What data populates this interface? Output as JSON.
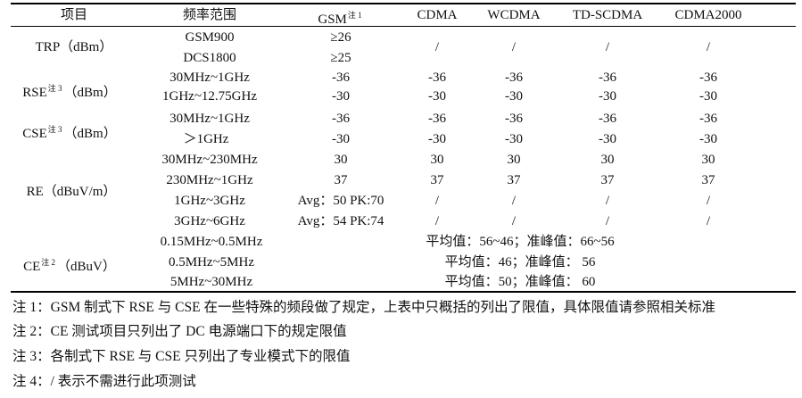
{
  "table": {
    "headers": {
      "item": "项目",
      "freq": "频率范围",
      "gsm": "GSM",
      "gsm_note": "注 1",
      "cdma": "CDMA",
      "wcdma": "WCDMA",
      "tdscdma": "TD-SCDMA",
      "cdma2000": "CDMA2000"
    },
    "groups": [
      {
        "label": "TRP",
        "unit": "（dBm）",
        "note": ""
      },
      {
        "label": "RSE",
        "unit": "（dBm）",
        "note": "注 3"
      },
      {
        "label": "CSE",
        "unit": "（dBm）",
        "note": "注 3"
      },
      {
        "label": "RE",
        "unit": "（dBuV/m）",
        "note": ""
      },
      {
        "label": "CE",
        "unit": "（dBuV）",
        "note": "注 2"
      }
    ],
    "rows": [
      {
        "freq": "GSM900",
        "gsm": "≥26",
        "cdma": "",
        "wcdma": "",
        "tdscdma": "",
        "cdma2000": ""
      },
      {
        "freq": "DCS1800",
        "gsm": "≥25",
        "cdma": "/",
        "wcdma": "/",
        "tdscdma": "/",
        "cdma2000": "/"
      },
      {
        "freq": "30MHz~1GHz",
        "gsm": "-36",
        "cdma": "-36",
        "wcdma": "-36",
        "tdscdma": "-36",
        "cdma2000": "-36"
      },
      {
        "freq": "1GHz~12.75GHz",
        "gsm": "-30",
        "cdma": "-30",
        "wcdma": "-30",
        "tdscdma": "-30",
        "cdma2000": "-30"
      },
      {
        "freq": "30MHz~1GHz",
        "gsm": "-36",
        "cdma": "-36",
        "wcdma": "-36",
        "tdscdma": "-36",
        "cdma2000": "-36"
      },
      {
        "freq": "＞1GHz",
        "gsm": "-30",
        "cdma": "-30",
        "wcdma": "-30",
        "tdscdma": "-30",
        "cdma2000": "-30"
      },
      {
        "freq": "30MHz~230MHz",
        "gsm": "30",
        "cdma": "30",
        "wcdma": "30",
        "tdscdma": "30",
        "cdma2000": "30"
      },
      {
        "freq": "230MHz~1GHz",
        "gsm": "37",
        "cdma": "37",
        "wcdma": "37",
        "tdscdma": "37",
        "cdma2000": "37"
      },
      {
        "freq": "1GHz~3GHz",
        "gsm": "Avg：50 PK:70",
        "cdma": "/",
        "wcdma": "/",
        "tdscdma": "/",
        "cdma2000": "/"
      },
      {
        "freq": "3GHz~6GHz",
        "gsm": "Avg：54 PK:74",
        "cdma": "/",
        "wcdma": "/",
        "tdscdma": "/",
        "cdma2000": "/"
      }
    ],
    "ce_rows": [
      {
        "freq": "0.15MHz~0.5MHz",
        "value": "平均值：56~46；准峰值：66~56"
      },
      {
        "freq": "0.5MHz~5MHz",
        "value": "平均值：46；准峰值：  56"
      },
      {
        "freq": "5MHz~30MHz",
        "value": "平均值：50；准峰值：  60"
      }
    ]
  },
  "notes": [
    "注 1：GSM 制式下 RSE 与 CSE 在一些特殊的频段做了规定，上表中只概括的列出了限值，具体限值请参照相关标准",
    "注 2：CE 测试项目只列出了 DC 电源端口下的规定限值",
    "注 3：各制式下 RSE 与 CSE 只列出了专业模式下的限值",
    "注 4：/  表示不需进行此项测试"
  ]
}
